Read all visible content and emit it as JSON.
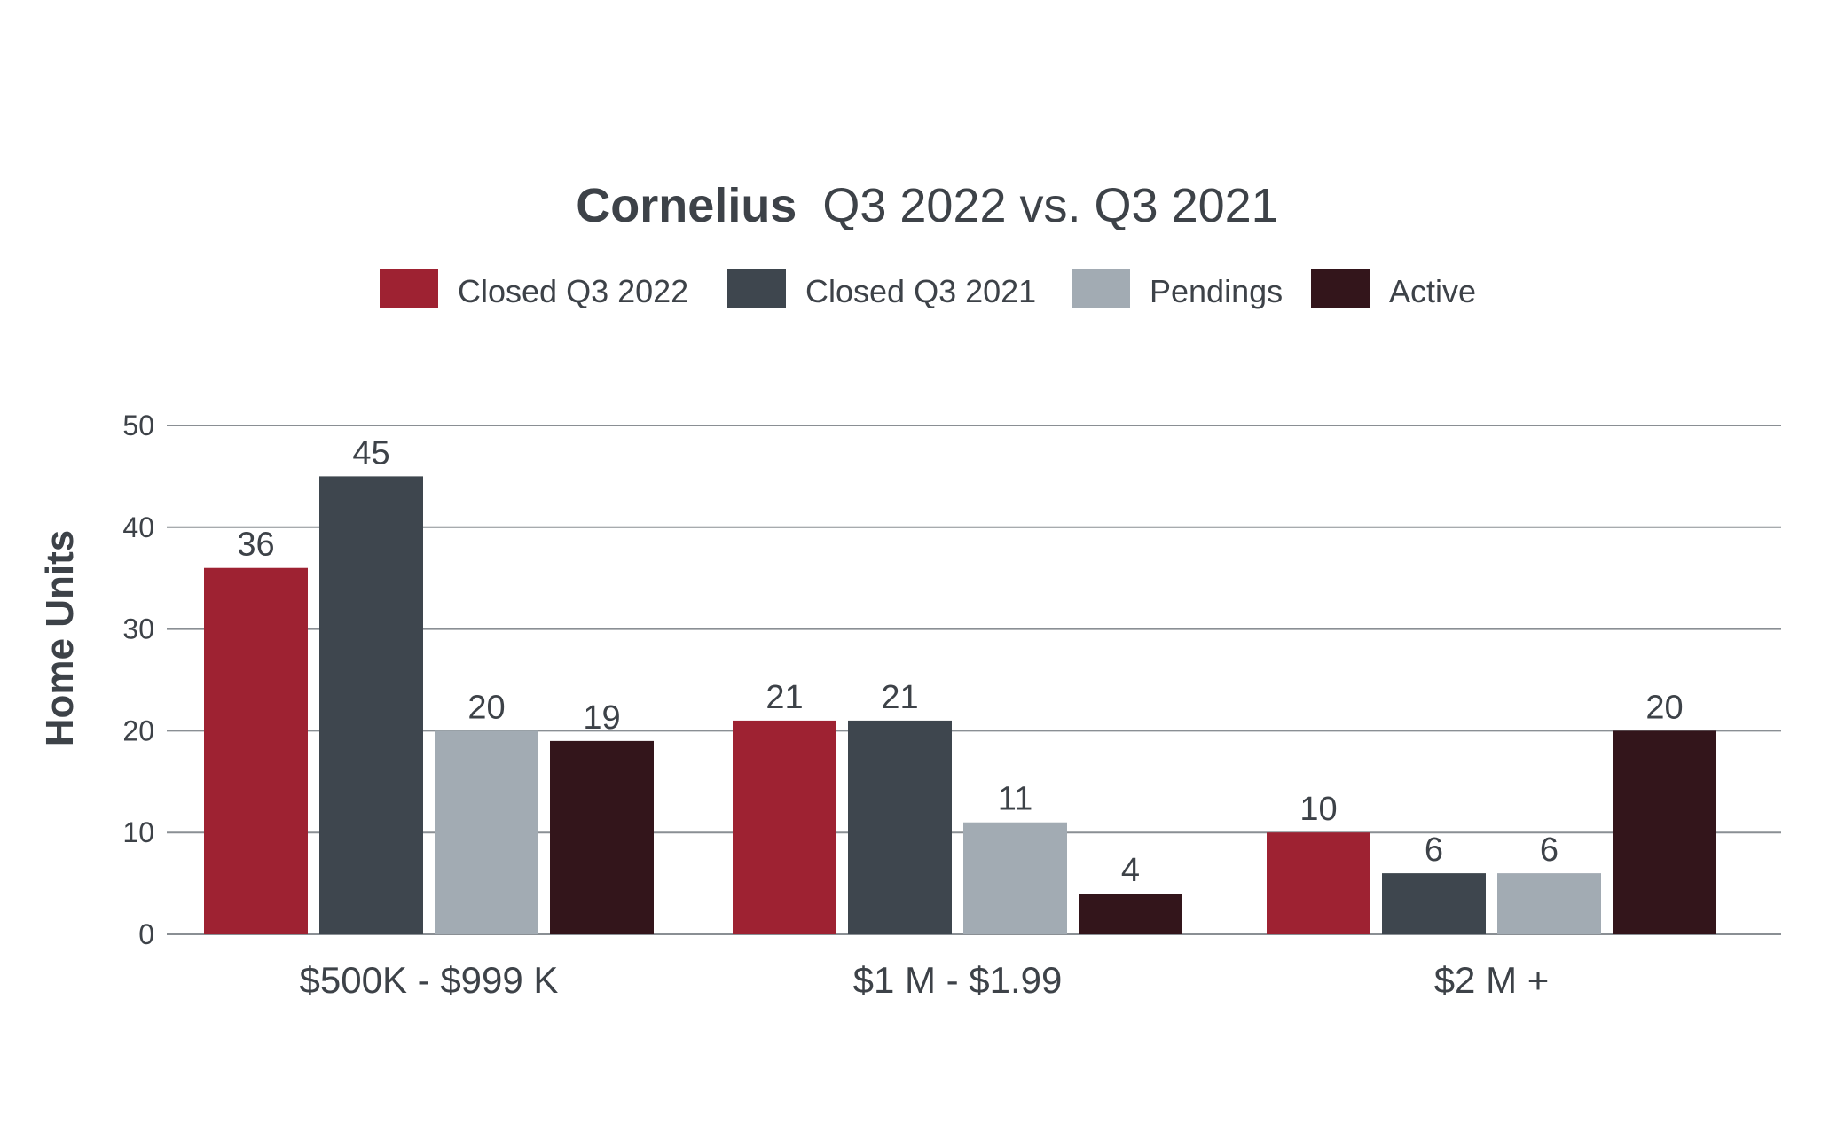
{
  "chart_data": {
    "type": "bar",
    "title_bold": "Cornelius",
    "title_rest": "Q3 2022 vs. Q3 2021",
    "xlabel": "",
    "ylabel": "Home Units",
    "ylim": [
      0,
      50
    ],
    "yticks": [
      0,
      10,
      20,
      30,
      40,
      50
    ],
    "grid": true,
    "legend_position": "top-center",
    "categories": [
      "$500K - $999 K",
      "$1 M - $1.99",
      "$2 M +"
    ],
    "series": [
      {
        "name": "Closed Q3 2022",
        "color": "#9e2232",
        "values": [
          36,
          21,
          10
        ]
      },
      {
        "name": "Closed Q3 2021",
        "color": "#3e464e",
        "values": [
          45,
          21,
          6
        ]
      },
      {
        "name": "Pendings",
        "color": "#a2abb3",
        "values": [
          20,
          11,
          6
        ]
      },
      {
        "name": "Active",
        "color": "#33151b",
        "values": [
          19,
          4,
          20
        ]
      }
    ]
  }
}
